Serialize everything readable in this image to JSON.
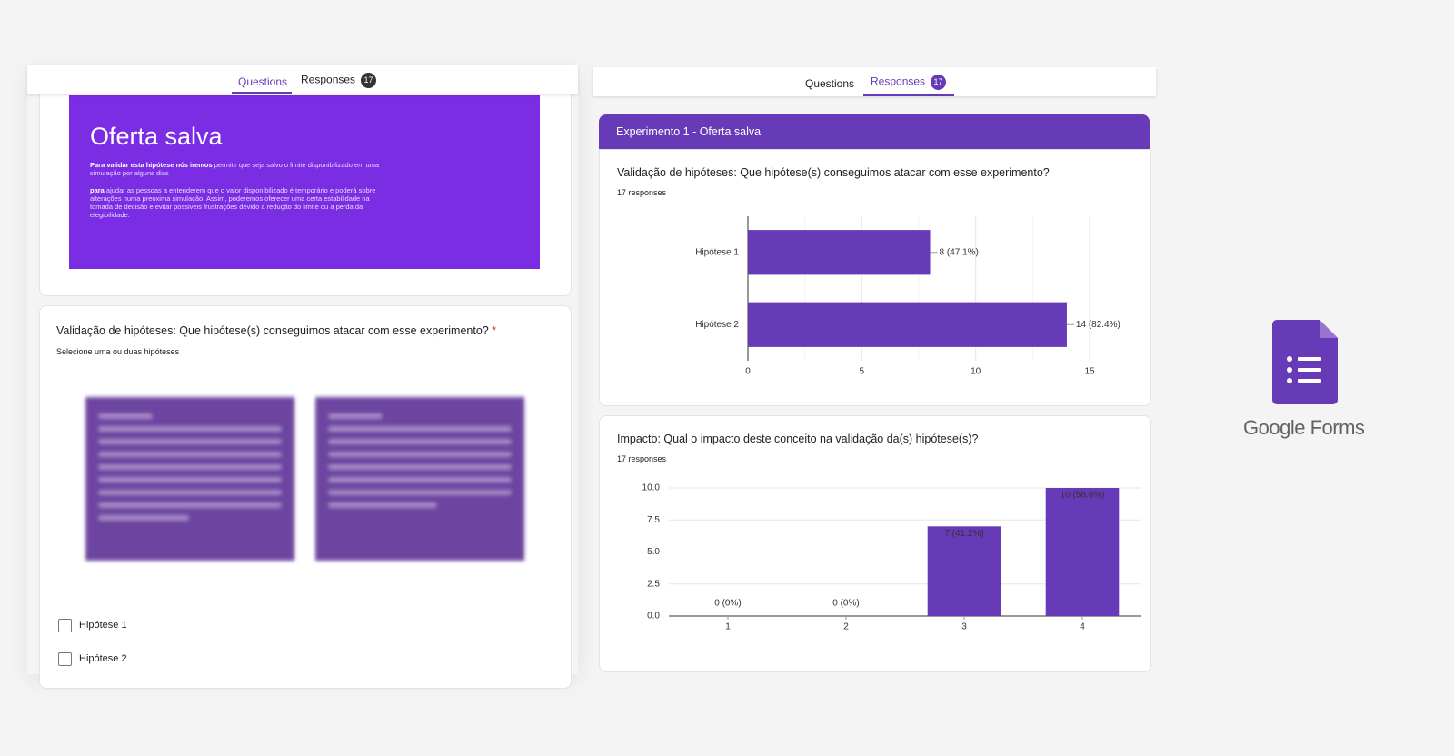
{
  "left_panel": {
    "tabs": [
      "Questions",
      "Responses"
    ],
    "badge": "17",
    "banner": {
      "title": "Oferta salva",
      "paragraph_1_bold": "Para validar esta hipótese nós iremos",
      "paragraph_1": " permitir que seja salvo o limite disponibilizado em uma simulação por alguns dias",
      "paragraph_2_bold": "para",
      "paragraph_2": " ajudar as pessoas a entenderem que o valor disponibilizado é temporário e poderá sobre alterações numa preoxima simulação. Assim, poderemos oferecer uma certa estabilidade na tomada de decisão e evitar possiveis frustrações devido a redução do limite ou a perda da elegibilidade."
    },
    "question": {
      "title": "Validação de hipóteses: Que hipótese(s) conseguimos atacar com esse experimento?",
      "required": "*",
      "help": "Selecione uma ou duas hipóteses",
      "options": [
        "Hipótese 1",
        "Hipótese 2"
      ]
    }
  },
  "right_panel": {
    "tabs": [
      "Questions",
      "Responses"
    ],
    "badge": "17",
    "section": "Experimento 1 - Oferta salva"
  },
  "logo": {
    "text_1": "Google",
    "text_2": "Forms"
  },
  "chart_data": [
    {
      "type": "hbar",
      "title": "Validação de hipóteses: Que hipótese(s) conseguimos atacar com esse experimento?",
      "subtitle": "17 responses",
      "categories": [
        "Hipótese 1",
        "Hipótese 2"
      ],
      "values": [
        8,
        14
      ],
      "value_labels": [
        "8 (47.1%)",
        "14 (82.4%)"
      ],
      "color": "#673ab7",
      "xlim": [
        0,
        15
      ],
      "xticks": [
        0,
        5,
        10,
        15
      ],
      "grid": true
    },
    {
      "type": "bar",
      "title": "Impacto: Qual o impacto deste conceito na validação da(s) hipótese(s)?",
      "subtitle": "17 responses",
      "categories": [
        "1",
        "2",
        "3",
        "4"
      ],
      "values": [
        0,
        0,
        7,
        10
      ],
      "value_labels": [
        "0 (0%)",
        "0 (0%)",
        "7 (41.2%)",
        "10 (58.8%)"
      ],
      "color": "#673ab7",
      "ylim": [
        0,
        10
      ],
      "yticks": [
        {
          "value": 0,
          "label": "0.0"
        },
        {
          "value": 2.5,
          "label": "2.5"
        },
        {
          "value": 5,
          "label": "5.0"
        },
        {
          "value": 7.5,
          "label": "7.5"
        },
        {
          "value": 10,
          "label": "10.0"
        }
      ],
      "grid": true
    }
  ]
}
